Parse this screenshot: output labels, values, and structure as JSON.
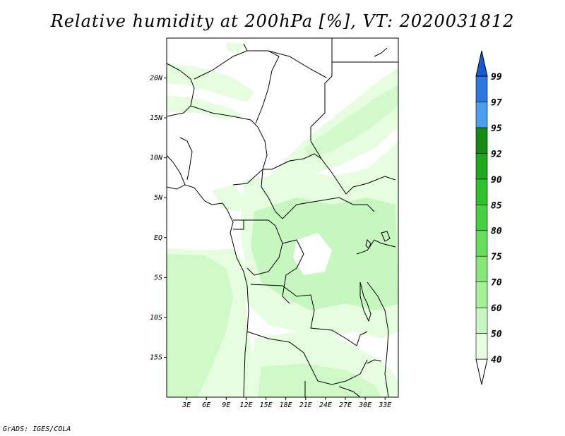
{
  "title": "Relative humidity at 200hPa [%], VT: 2020031812",
  "credit": "GrADS: IGES/COLA",
  "map": {
    "lon_range": [
      0,
      35
    ],
    "lat_range": [
      -20,
      25
    ],
    "x_ticks": [
      "3E",
      "6E",
      "9E",
      "12E",
      "15E",
      "18E",
      "21E",
      "24E",
      "27E",
      "30E",
      "33E"
    ],
    "y_ticks": [
      "20N",
      "15N",
      "10N",
      "5N",
      "EQ",
      "5S",
      "10S",
      "15S"
    ]
  },
  "colorbar": {
    "labels": [
      "40",
      "50",
      "60",
      "70",
      "75",
      "80",
      "85",
      "90",
      "92",
      "95",
      "97",
      "99"
    ],
    "colors": [
      "#ffffff",
      "#e6fde0",
      "#c6f7be",
      "#a6ef99",
      "#86e87a",
      "#66df5c",
      "#46d040",
      "#2ec22a",
      "#1ea81c",
      "#148c14",
      "#4aa0f0",
      "#2a78e0",
      "#1a5ad0"
    ]
  }
}
